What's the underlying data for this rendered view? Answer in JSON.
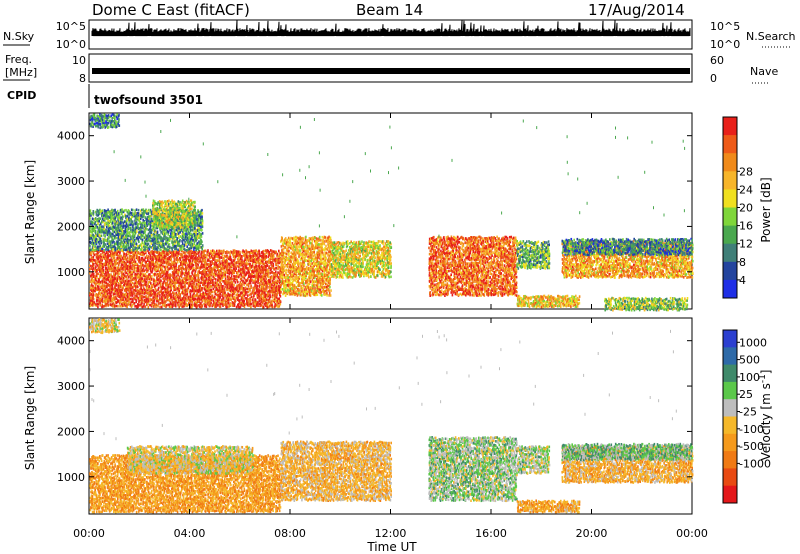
{
  "header": {
    "station": "Dome C East (fitACF)",
    "beam": "Beam 14",
    "date": "17/Aug/2014"
  },
  "top_panels": {
    "nsky_label": "N.Sky",
    "nsky_ticks": [
      "10^5",
      "10^0"
    ],
    "nsearch_label": "N.Search",
    "freq_label_1": "Freq.",
    "freq_label_2": "[MHz]",
    "freq_ticks": [
      "10",
      "8"
    ],
    "nave_ticks": [
      "60",
      "0"
    ],
    "nave_label": "Nave",
    "cpid_label": "CPID",
    "cpid_value": "twofsound 3501"
  },
  "chart_data": [
    {
      "type": "heatmap",
      "name": "power-panel",
      "ylabel": "Slant Range [km]",
      "xlabel": "",
      "xlim": [
        0,
        24
      ],
      "ylim": [
        180,
        4500
      ],
      "yticks": [
        "1000",
        "2000",
        "3000",
        "4000"
      ],
      "xticks": [
        "00:00",
        "04:00",
        "08:00",
        "12:00",
        "16:00",
        "20:00",
        "00:00"
      ],
      "colorbar": {
        "label": "Power [dB]",
        "ticks": [
          "4",
          "8",
          "12",
          "16",
          "20",
          "24",
          "28"
        ],
        "colors": [
          "#1f2fe6",
          "#23449e",
          "#3f7f78",
          "#4aa84e",
          "#7fd63a",
          "#f0e020",
          "#f7b52a",
          "#f08a1a",
          "#ee5a18",
          "#e8201a"
        ]
      },
      "regions": [
        {
          "t0": 0.0,
          "t1": 7.6,
          "r0": 250,
          "r1": 1500,
          "value": 28
        },
        {
          "t0": 7.6,
          "t1": 9.6,
          "r0": 500,
          "r1": 1800,
          "value": 22
        },
        {
          "t0": 9.6,
          "t1": 12.0,
          "r0": 900,
          "r1": 1700,
          "value": 18
        },
        {
          "t0": 0.0,
          "t1": 4.5,
          "r0": 1500,
          "r1": 2400,
          "value": 10
        },
        {
          "t0": 2.5,
          "t1": 4.2,
          "r0": 2000,
          "r1": 2600,
          "value": 16
        },
        {
          "t0": 13.5,
          "t1": 17.0,
          "r0": 500,
          "r1": 1800,
          "value": 26
        },
        {
          "t0": 17.0,
          "t1": 18.3,
          "r0": 1100,
          "r1": 1700,
          "value": 12
        },
        {
          "t0": 18.8,
          "t1": 24.0,
          "r0": 900,
          "r1": 1700,
          "value": 22
        },
        {
          "t0": 18.8,
          "t1": 24.0,
          "r0": 1400,
          "r1": 1750,
          "value": 8
        },
        {
          "t0": 17.0,
          "t1": 19.5,
          "r0": 250,
          "r1": 500,
          "value": 20
        },
        {
          "t0": 20.5,
          "t1": 23.8,
          "r0": 180,
          "r1": 450,
          "value": 14
        },
        {
          "t0": 0.0,
          "t1": 1.2,
          "r0": 4200,
          "r1": 4500,
          "value": 8
        }
      ]
    },
    {
      "type": "heatmap",
      "name": "velocity-panel",
      "ylabel": "Slant Range [km]",
      "xlabel": "Time UT",
      "xlim": [
        0,
        24
      ],
      "ylim": [
        180,
        4500
      ],
      "yticks": [
        "1000",
        "2000",
        "3000",
        "4000"
      ],
      "xticks": [
        "00:00",
        "04:00",
        "08:00",
        "12:00",
        "16:00",
        "20:00",
        "00:00"
      ],
      "colorbar": {
        "label": "Velocity [m s^-1]",
        "ticks": [
          "1000",
          "500",
          "100",
          "25",
          "-25",
          "-100",
          "-500",
          "-1000"
        ],
        "colors": [
          "#2b3fd0",
          "#2e6aa8",
          "#3f8a6a",
          "#5bc84a",
          "#bdbdbd",
          "#f5b82a",
          "#f59a1c",
          "#f07a14",
          "#e84a12",
          "#e4171a"
        ]
      },
      "regions": [
        {
          "t0": 0.0,
          "t1": 7.6,
          "r0": 250,
          "r1": 1500,
          "value": -300
        },
        {
          "t0": 1.5,
          "t1": 6.5,
          "r0": 1100,
          "r1": 1700,
          "value": 0
        },
        {
          "t0": 7.6,
          "t1": 12.0,
          "r0": 500,
          "r1": 1800,
          "value": -150
        },
        {
          "t0": 13.5,
          "t1": 17.0,
          "r0": 500,
          "r1": 1900,
          "value": 200
        },
        {
          "t0": 17.0,
          "t1": 18.3,
          "r0": 1100,
          "r1": 1700,
          "value": 150
        },
        {
          "t0": 18.8,
          "t1": 24.0,
          "r0": 900,
          "r1": 1700,
          "value": -200
        },
        {
          "t0": 18.8,
          "t1": 24.0,
          "r0": 1400,
          "r1": 1750,
          "value": 300
        },
        {
          "t0": 17.0,
          "t1": 19.5,
          "r0": 250,
          "r1": 500,
          "value": -250
        },
        {
          "t0": 0.0,
          "t1": 1.2,
          "r0": 4200,
          "r1": 4500,
          "value": 0
        }
      ]
    }
  ]
}
